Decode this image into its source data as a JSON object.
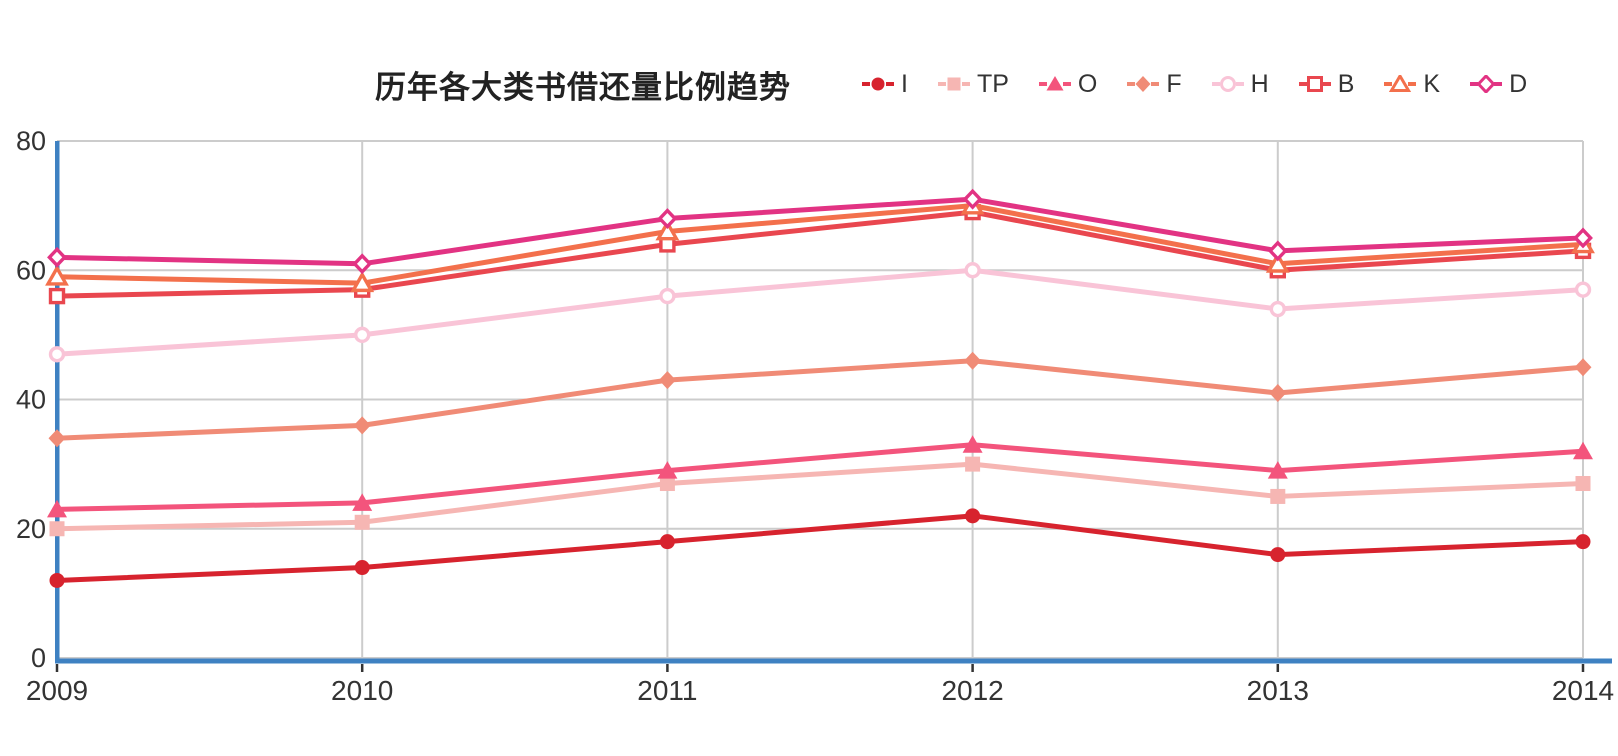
{
  "chart_data": {
    "type": "line",
    "title": "历年各大类书借还量比例趋势",
    "categories": [
      "2009",
      "2010",
      "2011",
      "2012",
      "2013",
      "2014"
    ],
    "xlabel": "",
    "ylabel": "",
    "ylim": [
      0,
      80
    ],
    "yticks": [
      0,
      20,
      40,
      60,
      80
    ],
    "grid": true,
    "legend_position": "top-right",
    "axis_color": "#3e81c2",
    "grid_color": "#cccccc",
    "tick_color": "#333333",
    "text_color": "#333333",
    "series": [
      {
        "name": "I",
        "color": "#d7232e",
        "marker": "circle",
        "fill": "solid",
        "values": [
          12,
          14,
          18,
          22,
          16,
          18
        ]
      },
      {
        "name": "TP",
        "color": "#f6b6b3",
        "marker": "square",
        "fill": "solid",
        "values": [
          20,
          21,
          27,
          30,
          25,
          27
        ]
      },
      {
        "name": "O",
        "color": "#f3547c",
        "marker": "triangle",
        "fill": "solid",
        "values": [
          23,
          24,
          29,
          33,
          29,
          32
        ]
      },
      {
        "name": "F",
        "color": "#f08b76",
        "marker": "diamond",
        "fill": "solid",
        "values": [
          34,
          36,
          43,
          46,
          41,
          45
        ]
      },
      {
        "name": "H",
        "color": "#f9c4d7",
        "marker": "circle",
        "fill": "open",
        "values": [
          47,
          50,
          56,
          60,
          54,
          57
        ]
      },
      {
        "name": "B",
        "color": "#e9474f",
        "marker": "square",
        "fill": "open",
        "values": [
          56,
          57,
          64,
          69,
          60,
          63
        ]
      },
      {
        "name": "K",
        "color": "#f3704c",
        "marker": "triangle",
        "fill": "open",
        "values": [
          59,
          58,
          66,
          70,
          61,
          64
        ]
      },
      {
        "name": "D",
        "color": "#e23383",
        "marker": "diamond",
        "fill": "open",
        "values": [
          62,
          61,
          68,
          71,
          63,
          65
        ]
      }
    ]
  }
}
